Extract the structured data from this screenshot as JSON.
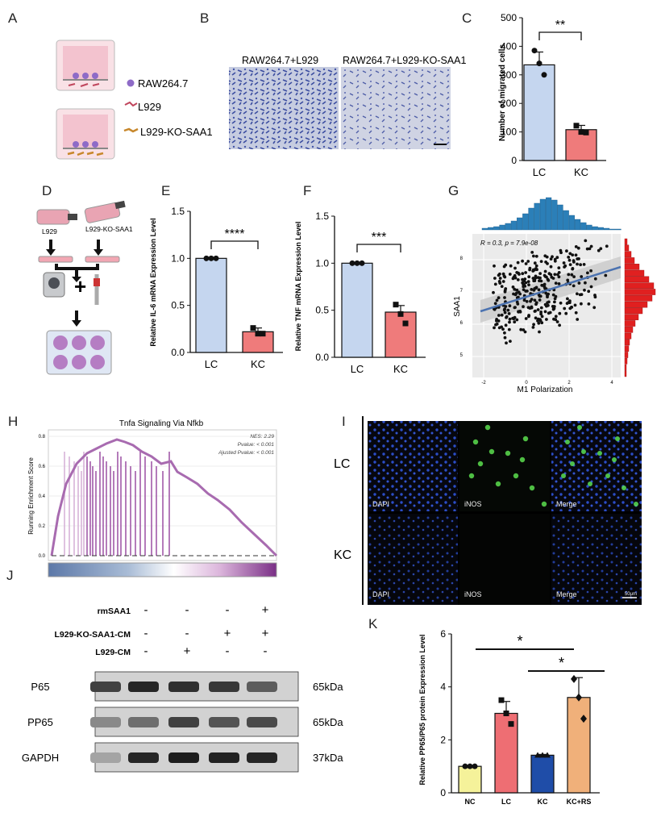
{
  "panels": {
    "A": {
      "label": "A",
      "legend": [
        {
          "text": "RAW264.7",
          "icon": "purple-cell-icon"
        },
        {
          "text": "L929",
          "icon": "red-fibroblast-icon"
        },
        {
          "text": "L929-KO-SAA1",
          "icon": "orange-fibroblast-icon"
        }
      ]
    },
    "B": {
      "label": "B",
      "titles": [
        "RAW264.7+L929",
        "RAW264.7+L929-KO-SAA1"
      ]
    },
    "C": {
      "label": "C",
      "ylabel": "Number of migrated cells",
      "yticks": [
        "0",
        "100",
        "200",
        "300",
        "400",
        "500"
      ],
      "sig": "**"
    },
    "D": {
      "label": "D",
      "flask_labels": [
        "L929",
        "L929-KO-SAA1"
      ],
      "plus": "+"
    },
    "E": {
      "label": "E",
      "ylabel": "Relative IL-6 mRNA Expression Level",
      "yticks": [
        "0.0",
        "0.5",
        "1.0",
        "1.5"
      ],
      "sig": "****"
    },
    "F": {
      "label": "F",
      "ylabel": "Relative TNF mRNA Expression Level",
      "yticks": [
        "0.0",
        "0.5",
        "1.0",
        "1.5"
      ],
      "sig": "***"
    },
    "G": {
      "label": "G",
      "ylabel": "SAA1",
      "xlabel": "M1 Polarization",
      "annotation": "R = 0.3, p = 7.9e-08",
      "xticks": [
        "-2",
        "0",
        "2",
        "4"
      ],
      "yticks": [
        "5",
        "6",
        "7",
        "8"
      ]
    },
    "H": {
      "label": "H",
      "title": "Tnfa Signaling Via Nfkb",
      "ylabel": "Running Enrichment Score",
      "yticks": [
        "0.0",
        "0.2",
        "0.4",
        "0.6",
        "0.8"
      ],
      "stats": [
        "NES: 2.29",
        "Pvalue: < 0.001",
        "Ajusted Pvalue: < 0.001"
      ]
    },
    "I": {
      "label": "I",
      "rows": [
        "LC",
        "KC"
      ],
      "channels": [
        "DAPI",
        "iNOS",
        "Merge"
      ],
      "scalebar": "50μm"
    },
    "J": {
      "label": "J",
      "treatments": [
        {
          "name": "rmSAA1",
          "signs": [
            "-",
            "-",
            "-",
            "+"
          ]
        },
        {
          "name": "L929-KO-SAA1-CM",
          "signs": [
            "-",
            "-",
            "+",
            "+"
          ]
        },
        {
          "name": "L929-CM",
          "signs": [
            "-",
            "+",
            "-",
            "-"
          ]
        }
      ],
      "blots": [
        {
          "name": "P65",
          "kda": "65kDa"
        },
        {
          "name": "PP65",
          "kda": "65kDa"
        },
        {
          "name": "GAPDH",
          "kda": "37kDa"
        }
      ]
    },
    "K": {
      "label": "K",
      "ylabel": "Relative PP65/P65 protein Expression Level",
      "yticks": [
        "0",
        "2",
        "4",
        "6"
      ],
      "sig": [
        "*",
        "*"
      ]
    }
  },
  "colors": {
    "blue_bar": "#c5d6ef",
    "red_bar": "#ef7b7b",
    "nc": "#f5f29a",
    "lc": "#ee6e73",
    "kc": "#1f4da8",
    "kcrs": "#f0b07a"
  },
  "chart_data": [
    {
      "id": "C",
      "type": "bar",
      "categories": [
        "LC",
        "KC"
      ],
      "values": [
        335,
        108
      ],
      "ylim": [
        0,
        500
      ],
      "points": [
        [
          385,
          340,
          300
        ],
        [
          122,
          100,
          98
        ]
      ],
      "errors": [
        45,
        15
      ],
      "ylabel": "Number of migrated cells"
    },
    {
      "id": "E",
      "type": "bar",
      "categories": [
        "LC",
        "KC"
      ],
      "values": [
        1.0,
        0.22
      ],
      "ylim": [
        0,
        1.5
      ],
      "points": [
        [
          1.0,
          1.0,
          1.0
        ],
        [
          0.26,
          0.2,
          0.2
        ]
      ],
      "errors": [
        0.0,
        0.04
      ],
      "ylabel": "Relative IL-6 mRNA Expression Level"
    },
    {
      "id": "F",
      "type": "bar",
      "categories": [
        "LC",
        "KC"
      ],
      "values": [
        1.0,
        0.48
      ],
      "ylim": [
        0,
        1.5
      ],
      "points": [
        [
          1.0,
          1.0,
          1.0
        ],
        [
          0.56,
          0.46,
          0.36
        ]
      ],
      "errors": [
        0.0,
        0.07
      ],
      "ylabel": "Relative TNF mRNA Expression Level"
    },
    {
      "id": "K",
      "type": "bar",
      "categories": [
        "NC",
        "LC",
        "KC",
        "KC+RS"
      ],
      "values": [
        1.0,
        3.0,
        1.42,
        3.6
      ],
      "ylim": [
        0,
        6
      ],
      "points": [
        [
          1.0,
          1.0,
          1.0
        ],
        [
          3.5,
          3.0,
          2.6
        ],
        [
          1.42,
          1.42,
          1.42
        ],
        [
          4.3,
          3.6,
          2.8
        ]
      ],
      "errors": [
        0.03,
        0.45,
        0.03,
        0.75
      ],
      "ylabel": "Relative PP65/P65 protein Expression Level"
    }
  ]
}
